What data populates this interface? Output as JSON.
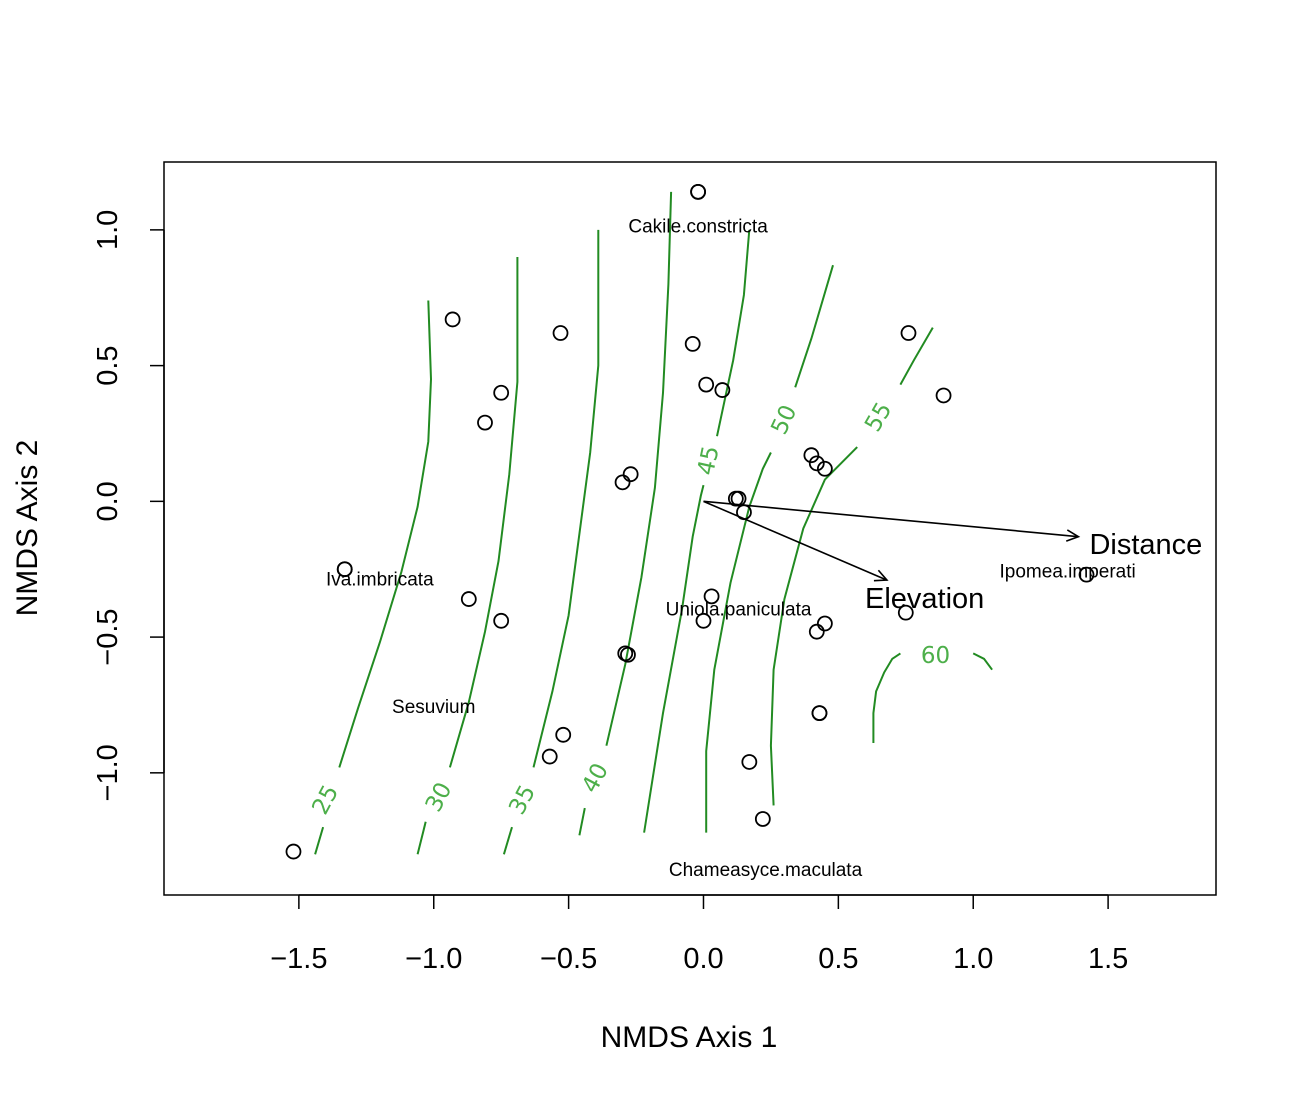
{
  "chart_data": {
    "type": "scatter",
    "xlabel": "NMDS Axis 1",
    "ylabel": "NMDS Axis 2",
    "xlim": [
      -2.0,
      1.9
    ],
    "ylim": [
      -1.45,
      1.25
    ],
    "x_ticks": [
      -1.5,
      -1.0,
      -0.5,
      0.0,
      0.5,
      1.0,
      1.5
    ],
    "x_tick_labels": [
      "−1.5",
      "−1.0",
      "−0.5",
      "0.0",
      "0.5",
      "1.0",
      "1.5"
    ],
    "y_ticks": [
      -1.0,
      -0.5,
      0.0,
      0.5,
      1.0
    ],
    "y_tick_labels": [
      "−1.0",
      "−0.5",
      "0.0",
      "0.5",
      "1.0"
    ],
    "grid": false,
    "colors": {
      "contour": "#228B22",
      "contour_label": "#4DAF4A",
      "points": "#000000"
    },
    "points": [
      {
        "x": -1.52,
        "y": -1.29
      },
      {
        "x": -1.33,
        "y": -0.25
      },
      {
        "x": -1.33,
        "y": -0.25
      },
      {
        "x": -0.93,
        "y": 0.67
      },
      {
        "x": -0.87,
        "y": -0.36
      },
      {
        "x": -0.81,
        "y": 0.29
      },
      {
        "x": -0.75,
        "y": 0.4
      },
      {
        "x": -0.75,
        "y": -0.44
      },
      {
        "x": -0.53,
        "y": 0.62
      },
      {
        "x": -0.52,
        "y": -0.86
      },
      {
        "x": -0.57,
        "y": -0.94
      },
      {
        "x": -0.3,
        "y": 0.07
      },
      {
        "x": -0.27,
        "y": 0.1
      },
      {
        "x": -0.29,
        "y": -0.56
      },
      {
        "x": -0.28,
        "y": -0.565
      },
      {
        "x": -0.02,
        "y": 1.14
      },
      {
        "x": -0.02,
        "y": 1.14
      },
      {
        "x": -0.04,
        "y": 0.58
      },
      {
        "x": 0.01,
        "y": 0.43
      },
      {
        "x": 0.07,
        "y": 0.41
      },
      {
        "x": 0.12,
        "y": 0.01
      },
      {
        "x": 0.13,
        "y": 0.01
      },
      {
        "x": 0.15,
        "y": -0.04
      },
      {
        "x": 0.03,
        "y": -0.35
      },
      {
        "x": 0.0,
        "y": -0.44
      },
      {
        "x": 0.4,
        "y": 0.17
      },
      {
        "x": 0.42,
        "y": 0.14
      },
      {
        "x": 0.45,
        "y": 0.12
      },
      {
        "x": 0.42,
        "y": -0.48
      },
      {
        "x": 0.45,
        "y": -0.45
      },
      {
        "x": 0.43,
        "y": -0.78
      },
      {
        "x": 0.43,
        "y": -0.78
      },
      {
        "x": 0.17,
        "y": -0.96
      },
      {
        "x": 0.22,
        "y": -1.17
      },
      {
        "x": 0.76,
        "y": 0.62
      },
      {
        "x": 0.89,
        "y": 0.39
      },
      {
        "x": 0.75,
        "y": -0.41
      },
      {
        "x": 1.42,
        "y": -0.27
      }
    ],
    "species": [
      {
        "name": "Cakile.constricta",
        "x": -0.02,
        "y": 1.01
      },
      {
        "name": "Iva.imbricata",
        "x": -1.2,
        "y": -0.29
      },
      {
        "name": "Sesuvium",
        "x": -1.0,
        "y": -0.76
      },
      {
        "name": "Uniola.paniculata",
        "x": 0.13,
        "y": -0.4
      },
      {
        "name": "Ipomea.imperati",
        "x": 1.35,
        "y": -0.26
      },
      {
        "name": "Chameasyce.maculata",
        "x": 0.23,
        "y": -1.36
      }
    ],
    "vectors": [
      {
        "name": "Elevation",
        "x": 0.68,
        "y": -0.29,
        "label_x": 0.82,
        "label_y": -0.36
      },
      {
        "name": "Distance",
        "x": 1.39,
        "y": -0.13,
        "label_x": 1.64,
        "label_y": -0.16
      }
    ],
    "contours": [
      {
        "level": "25",
        "label": "25",
        "label_pos": [
          -1.4,
          -1.1
        ],
        "label_angle": -62,
        "segments": [
          [
            [
              -1.44,
              -1.3
            ],
            [
              -1.41,
              -1.2
            ]
          ],
          [
            [
              -1.35,
              -0.98
            ],
            [
              -1.28,
              -0.76
            ],
            [
              -1.2,
              -0.52
            ],
            [
              -1.12,
              -0.26
            ],
            [
              -1.06,
              -0.02
            ],
            [
              -1.02,
              0.22
            ],
            [
              -1.01,
              0.45
            ],
            [
              -1.02,
              0.74
            ]
          ]
        ]
      },
      {
        "level": "30",
        "label": "30",
        "label_pos": [
          -0.98,
          -1.09
        ],
        "label_angle": -62,
        "segments": [
          [
            [
              -1.06,
              -1.3
            ],
            [
              -1.03,
              -1.18
            ]
          ],
          [
            [
              -0.94,
              -0.98
            ],
            [
              -0.87,
              -0.74
            ],
            [
              -0.81,
              -0.48
            ],
            [
              -0.76,
              -0.22
            ],
            [
              -0.72,
              0.1
            ],
            [
              -0.69,
              0.44
            ],
            [
              -0.69,
              0.9
            ]
          ]
        ]
      },
      {
        "level": "35",
        "label": "35",
        "label_pos": [
          -0.67,
          -1.1
        ],
        "label_angle": -62,
        "segments": [
          [
            [
              -0.74,
              -1.3
            ],
            [
              -0.71,
              -1.2
            ]
          ],
          [
            [
              -0.63,
              -0.98
            ],
            [
              -0.56,
              -0.7
            ],
            [
              -0.5,
              -0.42
            ],
            [
              -0.46,
              -0.12
            ],
            [
              -0.42,
              0.18
            ],
            [
              -0.39,
              0.5
            ],
            [
              -0.39,
              1.0
            ]
          ]
        ]
      },
      {
        "level": "40",
        "label": "40",
        "label_pos": [
          -0.4,
          -1.02
        ],
        "label_angle": -62,
        "segments": [
          [
            [
              -0.46,
              -1.23
            ],
            [
              -0.44,
              -1.13
            ]
          ],
          [
            [
              -0.36,
              -0.9
            ],
            [
              -0.29,
              -0.6
            ],
            [
              -0.23,
              -0.28
            ],
            [
              -0.18,
              0.05
            ],
            [
              -0.15,
              0.4
            ],
            [
              -0.13,
              0.8
            ],
            [
              -0.12,
              1.14
            ]
          ]
        ]
      },
      {
        "level": "45",
        "label": "45",
        "label_pos": [
          0.02,
          0.15
        ],
        "label_angle": -78,
        "segments": [
          [
            [
              -0.22,
              -1.22
            ],
            [
              -0.15,
              -0.78
            ],
            [
              -0.08,
              -0.4
            ],
            [
              -0.04,
              -0.13
            ],
            [
              -0.01,
              0.02
            ],
            [
              0.0,
              0.06
            ]
          ],
          [
            [
              0.05,
              0.24
            ],
            [
              0.11,
              0.52
            ],
            [
              0.15,
              0.76
            ],
            [
              0.17,
              1.0
            ]
          ]
        ]
      },
      {
        "level": "50",
        "label": "50",
        "label_pos": [
          0.3,
          0.3
        ],
        "label_angle": -65,
        "segments": [
          [
            [
              0.01,
              -1.22
            ],
            [
              0.01,
              -0.92
            ],
            [
              0.04,
              -0.62
            ],
            [
              0.1,
              -0.3
            ],
            [
              0.17,
              -0.02
            ],
            [
              0.22,
              0.12
            ],
            [
              0.25,
              0.18
            ]
          ],
          [
            [
              0.34,
              0.42
            ],
            [
              0.4,
              0.6
            ],
            [
              0.48,
              0.87
            ]
          ]
        ]
      },
      {
        "level": "55",
        "label": "55",
        "label_pos": [
          0.65,
          0.31
        ],
        "label_angle": -60,
        "segments": [
          [
            [
              0.26,
              -1.12
            ],
            [
              0.25,
              -0.9
            ],
            [
              0.26,
              -0.62
            ],
            [
              0.3,
              -0.36
            ],
            [
              0.37,
              -0.1
            ],
            [
              0.45,
              0.08
            ],
            [
              0.57,
              0.2
            ]
          ],
          [
            [
              0.73,
              0.43
            ],
            [
              0.78,
              0.52
            ],
            [
              0.85,
              0.64
            ]
          ]
        ]
      },
      {
        "level": "60",
        "label": "60",
        "label_pos": [
          0.86,
          -0.57
        ],
        "label_angle": 0,
        "segments": [
          [
            [
              0.63,
              -0.89
            ],
            [
              0.63,
              -0.78
            ],
            [
              0.64,
              -0.7
            ],
            [
              0.67,
              -0.63
            ],
            [
              0.7,
              -0.58
            ],
            [
              0.73,
              -0.56
            ]
          ],
          [
            [
              1.0,
              -0.56
            ],
            [
              1.04,
              -0.58
            ],
            [
              1.07,
              -0.62
            ]
          ]
        ]
      }
    ]
  }
}
